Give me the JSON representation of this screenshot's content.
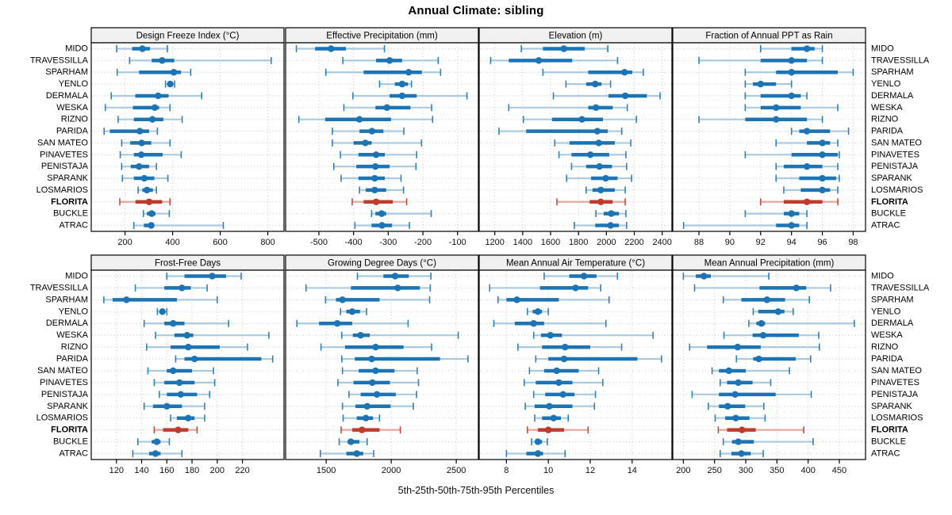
{
  "title": "Annual Climate: sibling",
  "footer": "5th-25th-50th-75th-95th Percentiles",
  "percentile_labels": [
    "5th",
    "25th",
    "50th",
    "75th",
    "95th"
  ],
  "sites": [
    "MIDO",
    "TRAVESSILLA",
    "SPARHAM",
    "YENLO",
    "DERMALA",
    "WESKA",
    "RIZNO",
    "PARIDA",
    "SAN MATEO",
    "PINAVETES",
    "PENISTAJA",
    "SPARANK",
    "LOSMARIOS",
    "FLORITA",
    "BUCKLE",
    "ATRAC"
  ],
  "highlight_site": "FLORITA",
  "colors": {
    "series": "#1C74B4",
    "series_light": "#A9CBE2",
    "highlight": "#BF3B2B",
    "highlight_light": "#E3A79E",
    "panel_header_bg": "#F0F0F0",
    "border": "#000000",
    "grid": "#C9C9C9",
    "tick_label": "#111111"
  },
  "chart_data": [
    {
      "type": "percentile-dot",
      "title": "Design Freeze Index (°C)",
      "xlim": [
        58,
        868
      ],
      "ticks": [
        200,
        400,
        600,
        800
      ],
      "values": [
        [
          165,
          230,
          273,
          305,
          378
        ],
        [
          219,
          312,
          356,
          407,
          814
        ],
        [
          167,
          259,
          405,
          435,
          476
        ],
        [
          370,
          380,
          390,
          398,
          408
        ],
        [
          142,
          243,
          339,
          383,
          522
        ],
        [
          117,
          233,
          325,
          343,
          389
        ],
        [
          171,
          237,
          315,
          361,
          440
        ],
        [
          112,
          136,
          262,
          301,
          336
        ],
        [
          186,
          222,
          270,
          310,
          389
        ],
        [
          180,
          237,
          268,
          358,
          436
        ],
        [
          186,
          224,
          259,
          301,
          332
        ],
        [
          189,
          237,
          281,
          323,
          380
        ],
        [
          255,
          273,
          292,
          317,
          332
        ],
        [
          178,
          244,
          301,
          356,
          389
        ],
        [
          277,
          292,
          312,
          328,
          386
        ],
        [
          237,
          279,
          310,
          321,
          613
        ]
      ]
    },
    {
      "type": "percentile-dot",
      "title": "Effective Precipitation (mm)",
      "xlim": [
        -596,
        -40
      ],
      "ticks": [
        -500,
        -400,
        -300,
        -200,
        -100
      ],
      "values": [
        [
          -565,
          -511,
          -465,
          -422,
          -311
        ],
        [
          -431,
          -335,
          -296,
          -260,
          -156
        ],
        [
          -480,
          -371,
          -241,
          -203,
          -149
        ],
        [
          -325,
          -281,
          -260,
          -243,
          -233
        ],
        [
          -402,
          -296,
          -260,
          -218,
          -73
        ],
        [
          -428,
          -337,
          -304,
          -236,
          -175
        ],
        [
          -558,
          -482,
          -383,
          -292,
          -172
        ],
        [
          -461,
          -383,
          -347,
          -314,
          -255
        ],
        [
          -461,
          -400,
          -366,
          -348,
          -204
        ],
        [
          -438,
          -386,
          -335,
          -310,
          -218
        ],
        [
          -457,
          -392,
          -337,
          -296,
          -220
        ],
        [
          -436,
          -386,
          -339,
          -310,
          -263
        ],
        [
          -383,
          -365,
          -339,
          -306,
          -256
        ],
        [
          -404,
          -371,
          -335,
          -287,
          -247
        ],
        [
          -348,
          -337,
          -319,
          -306,
          -176
        ],
        [
          -396,
          -348,
          -318,
          -289,
          -239
        ]
      ]
    },
    {
      "type": "percentile-dot",
      "title": "Elevation (m)",
      "xlim": [
        1088,
        2470
      ],
      "ticks": [
        1200,
        1400,
        1600,
        1800,
        2000,
        2200,
        2400
      ],
      "values": [
        [
          1390,
          1545,
          1695,
          1845,
          2010
        ],
        [
          1170,
          1300,
          1515,
          1755,
          2080
        ],
        [
          1545,
          1870,
          2130,
          2185,
          2265
        ],
        [
          1710,
          1855,
          1920,
          1965,
          2030
        ],
        [
          1620,
          2015,
          2135,
          2290,
          2385
        ],
        [
          1300,
          1870,
          1925,
          2045,
          2150
        ],
        [
          1405,
          1610,
          1825,
          1975,
          2215
        ],
        [
          1230,
          1425,
          1935,
          2010,
          2110
        ],
        [
          1630,
          1735,
          1945,
          2060,
          2175
        ],
        [
          1660,
          1750,
          1885,
          2020,
          2140
        ],
        [
          1750,
          1855,
          1950,
          2040,
          2145
        ],
        [
          1715,
          1890,
          1995,
          2080,
          2180
        ],
        [
          1855,
          1900,
          1960,
          2060,
          2135
        ],
        [
          1645,
          1880,
          1960,
          2045,
          2135
        ],
        [
          1925,
          1980,
          2035,
          2090,
          2140
        ],
        [
          1770,
          1920,
          2030,
          2090,
          2145
        ]
      ]
    },
    {
      "type": "percentile-dot",
      "title": "Fraction of Annual PPT as Rain",
      "xlim": [
        86.3,
        98.8
      ],
      "ticks": [
        88,
        90,
        92,
        94,
        96,
        98
      ],
      "values": [
        [
          92,
          94,
          95,
          95.5,
          96
        ],
        [
          88,
          92,
          94,
          95,
          96
        ],
        [
          91,
          93,
          94,
          97,
          98
        ],
        [
          91,
          91.5,
          92,
          93,
          94
        ],
        [
          91,
          92,
          94,
          94.6,
          95
        ],
        [
          91,
          92,
          93,
          94.6,
          97
        ],
        [
          88,
          91,
          93,
          95,
          96
        ],
        [
          94,
          94.5,
          95,
          96.5,
          97.7
        ],
        [
          93,
          95,
          96,
          96.5,
          97
        ],
        [
          91,
          94,
          96,
          97,
          97.1
        ],
        [
          93,
          93.5,
          95,
          96,
          97
        ],
        [
          93,
          94.5,
          96,
          96.9,
          97.1
        ],
        [
          93.5,
          94.6,
          96,
          96.5,
          97
        ],
        [
          92,
          93.5,
          95,
          96,
          97
        ],
        [
          91,
          93.5,
          94,
          94.5,
          95
        ],
        [
          87,
          93,
          94,
          94.5,
          95
        ]
      ]
    },
    {
      "type": "percentile-dot",
      "title": "Frost-Free Days",
      "xlim": [
        100,
        253
      ],
      "ticks": [
        120,
        140,
        160,
        180,
        200,
        220
      ],
      "values": [
        [
          160,
          174,
          196,
          207,
          219
        ],
        [
          135,
          158,
          172,
          179,
          192
        ],
        [
          110,
          117,
          128,
          168,
          200
        ],
        [
          152.5,
          154.5,
          156.5,
          158.5,
          160
        ],
        [
          142,
          158,
          165,
          174,
          209
        ],
        [
          151,
          166,
          176,
          181,
          241
        ],
        [
          144,
          163,
          177,
          202,
          224
        ],
        [
          167,
          174,
          182,
          235,
          244
        ],
        [
          145,
          160,
          165,
          180,
          197
        ],
        [
          150,
          158,
          170,
          182,
          198
        ],
        [
          154,
          160,
          171,
          184,
          194
        ],
        [
          142,
          149,
          160,
          172,
          190
        ],
        [
          163,
          168,
          177,
          182,
          190
        ],
        [
          150,
          157,
          169,
          177,
          184
        ],
        [
          137,
          148,
          152,
          155,
          162
        ],
        [
          133,
          146,
          151,
          155,
          172
        ]
      ]
    },
    {
      "type": "percentile-dot",
      "title": "Growing Degree Days (°C)",
      "xlim": [
        1188,
        2670
      ],
      "ticks": [
        1500,
        2000,
        2500
      ],
      "values": [
        [
          1740,
          1940,
          2030,
          2135,
          2305
        ],
        [
          1345,
          1690,
          2050,
          2220,
          2300
        ],
        [
          1495,
          1575,
          1625,
          1910,
          2295
        ],
        [
          1610,
          1655,
          1700,
          1760,
          1810
        ],
        [
          1275,
          1445,
          1585,
          1700,
          2130
        ],
        [
          1620,
          1705,
          1765,
          1835,
          2515
        ],
        [
          1460,
          1645,
          1880,
          2095,
          2310
        ],
        [
          1620,
          1720,
          1850,
          2375,
          2590
        ],
        [
          1625,
          1750,
          1880,
          2025,
          2200
        ],
        [
          1590,
          1710,
          1855,
          1990,
          2210
        ],
        [
          1675,
          1765,
          1890,
          2035,
          2195
        ],
        [
          1625,
          1725,
          1815,
          1995,
          2170
        ],
        [
          1630,
          1735,
          1805,
          1860,
          1910
        ],
        [
          1615,
          1700,
          1775,
          1910,
          2070
        ],
        [
          1600,
          1665,
          1690,
          1755,
          1815
        ],
        [
          1455,
          1655,
          1735,
          1785,
          1865
        ]
      ]
    },
    {
      "type": "percentile-dot",
      "title": "Mean Annual Air Temperature (°C)",
      "xlim": [
        6.7,
        15.9
      ],
      "ticks": [
        8,
        10,
        12,
        14
      ],
      "values": [
        [
          9.8,
          11.0,
          11.7,
          12.3,
          13.3
        ],
        [
          7.2,
          9.6,
          11.3,
          11.9,
          12.5
        ],
        [
          7.6,
          8.0,
          8.5,
          10.5,
          12.9
        ],
        [
          9.0,
          9.25,
          9.5,
          9.7,
          10.0
        ],
        [
          7.4,
          8.4,
          9.3,
          9.8,
          12.75
        ],
        [
          9.3,
          9.65,
          10.1,
          10.65,
          15.0
        ],
        [
          8.55,
          9.7,
          10.8,
          12.0,
          13.5
        ],
        [
          9.4,
          10.0,
          10.75,
          14.25,
          15.4
        ],
        [
          9.1,
          9.8,
          10.4,
          11.45,
          12.4
        ],
        [
          8.85,
          9.4,
          10.5,
          11.15,
          12.6
        ],
        [
          9.3,
          9.85,
          10.7,
          11.25,
          12.25
        ],
        [
          8.9,
          9.35,
          10.05,
          11.15,
          12.2
        ],
        [
          9.35,
          9.7,
          10.25,
          10.6,
          10.95
        ],
        [
          9.0,
          9.5,
          10.0,
          10.75,
          11.9
        ],
        [
          9.2,
          9.4,
          9.5,
          9.7,
          9.95
        ],
        [
          8.0,
          8.95,
          9.5,
          9.75,
          10.8
        ]
      ]
    },
    {
      "type": "percentile-dot",
      "title": "Mean Annual Precipitation (mm)",
      "xlim": [
        183,
        492
      ],
      "ticks": [
        200,
        250,
        300,
        350,
        400,
        450
      ],
      "values": [
        [
          200,
          220,
          233,
          244,
          337
        ],
        [
          218,
          322,
          381,
          397,
          436
        ],
        [
          264,
          293,
          334,
          363,
          402
        ],
        [
          312,
          320,
          352,
          362,
          376
        ],
        [
          305,
          317,
          325,
          331,
          474
        ],
        [
          265,
          311,
          328,
          385,
          417
        ],
        [
          210,
          238,
          287,
          324,
          418
        ],
        [
          285,
          312,
          321,
          380,
          404
        ],
        [
          246,
          257,
          273,
          300,
          370
        ],
        [
          259,
          270,
          288,
          311,
          340
        ],
        [
          214,
          257,
          283,
          348,
          405
        ],
        [
          240,
          257,
          271,
          299,
          329
        ],
        [
          251,
          267,
          284,
          306,
          331
        ],
        [
          256,
          270,
          294,
          316,
          393
        ],
        [
          264,
          278,
          288,
          313,
          408
        ],
        [
          259,
          277,
          293,
          308,
          328
        ]
      ]
    }
  ]
}
